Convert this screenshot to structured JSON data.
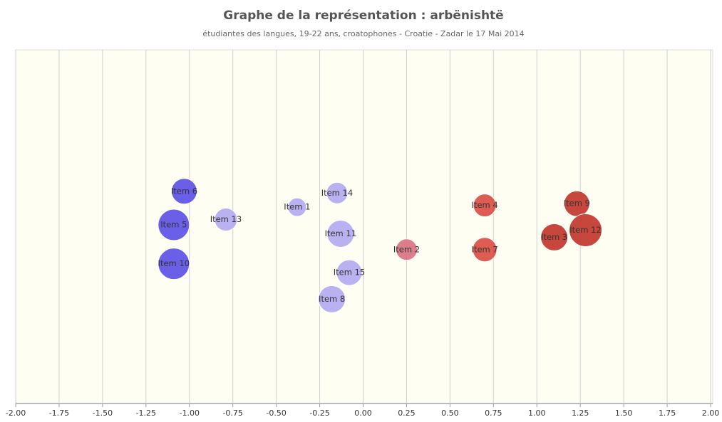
{
  "chart_data": {
    "type": "bubble",
    "title": "Graphe de la représentation : arbënishtë",
    "subtitle": "étudiantes des langues, 19-22 ans, croatophones - Croatie - Zadar le 17 Mai 2014",
    "labels": [
      "Item 6",
      "Item 5",
      "Item 10",
      "Item 13",
      "Item 1",
      "Item 14",
      "Item 11",
      "Item 15",
      "Item 8",
      "Item 2",
      "Item 4",
      "Item 7",
      "Item 9",
      "Item 3",
      "Item 12"
    ],
    "x": [
      -1.03,
      -1.09,
      -1.09,
      -0.79,
      -0.38,
      -0.15,
      -0.13,
      -0.08,
      -0.18,
      0.25,
      0.7,
      0.7,
      1.23,
      1.1,
      1.28
    ],
    "y": [
      0.2,
      0.01,
      -0.21,
      0.04,
      0.11,
      0.19,
      -0.04,
      -0.26,
      -0.41,
      -0.13,
      0.12,
      -0.13,
      0.13,
      -0.06,
      -0.02
    ],
    "sizes": [
      18,
      22,
      22,
      16,
      13,
      15,
      19,
      18,
      19,
      15,
      16,
      17,
      18,
      19,
      23
    ],
    "colors": [
      "#5a4ee6",
      "#5a4ee6",
      "#5a4ee6",
      "#b3a9f0",
      "#b3a9f0",
      "#b3a9f0",
      "#b3a9f0",
      "#b3a9f0",
      "#b3a9f0",
      "#d9707f",
      "#d94a42",
      "#d94a42",
      "#c23328",
      "#c23328",
      "#c23328"
    ],
    "xlim": [
      -2,
      2
    ],
    "ylim": [
      -1,
      1
    ],
    "xticks": [
      {
        "value": -2,
        "label": "-2.00"
      },
      {
        "value": -1.75,
        "label": "-1.75"
      },
      {
        "value": -1.5,
        "label": "-1.50"
      },
      {
        "value": -1.25,
        "label": "-1.25"
      },
      {
        "value": -1,
        "label": "-1.00"
      },
      {
        "value": -0.75,
        "label": "-0.75"
      },
      {
        "value": -0.5,
        "label": "-0.50"
      },
      {
        "value": -0.25,
        "label": "-0.25"
      },
      {
        "value": 0,
        "label": "0.00"
      },
      {
        "value": 0.25,
        "label": "0.25"
      },
      {
        "value": 0.5,
        "label": "0.50"
      },
      {
        "value": 0.75,
        "label": "0.75"
      },
      {
        "value": 1,
        "label": "1.00"
      },
      {
        "value": 1.25,
        "label": "1.25"
      },
      {
        "value": 1.5,
        "label": "1.50"
      },
      {
        "value": 1.75,
        "label": "1.75"
      },
      {
        "value": 2,
        "label": "2.00"
      }
    ],
    "grid": true
  }
}
